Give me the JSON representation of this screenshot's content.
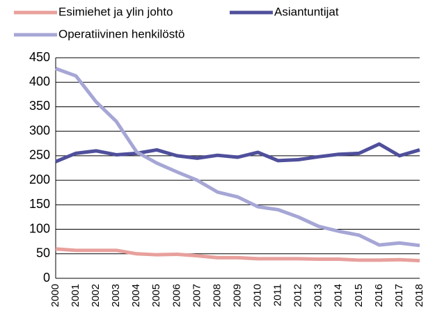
{
  "chart_data": {
    "type": "line",
    "categories": [
      "2000",
      "2001",
      "2002",
      "2003",
      "2004",
      "2005",
      "2006",
      "2007",
      "2008",
      "2009",
      "2010",
      "2011",
      "2012",
      "2013",
      "2014",
      "2015",
      "2016",
      "2017",
      "2018"
    ],
    "series": [
      {
        "name": "Esimiehet ja ylin johto",
        "color": "#e8a09c",
        "values": [
          60,
          57,
          57,
          57,
          50,
          48,
          49,
          46,
          42,
          42,
          40,
          40,
          40,
          39,
          39,
          37,
          37,
          38,
          36
        ]
      },
      {
        "name": "Asiantuntijat",
        "color": "#4f4f9c",
        "values": [
          238,
          255,
          260,
          252,
          255,
          262,
          250,
          245,
          251,
          247,
          257,
          240,
          242,
          248,
          253,
          255,
          274,
          250,
          262
        ]
      },
      {
        "name": "Operatiivinen henkilöstö",
        "color": "#a6a6d6",
        "values": [
          428,
          413,
          360,
          320,
          258,
          235,
          217,
          200,
          176,
          166,
          146,
          140,
          125,
          106,
          96,
          88,
          68,
          72,
          67
        ]
      }
    ],
    "ylim": [
      0,
      450
    ],
    "yticks": [
      0,
      50,
      100,
      150,
      200,
      250,
      300,
      350,
      400,
      450
    ],
    "grid": true
  }
}
